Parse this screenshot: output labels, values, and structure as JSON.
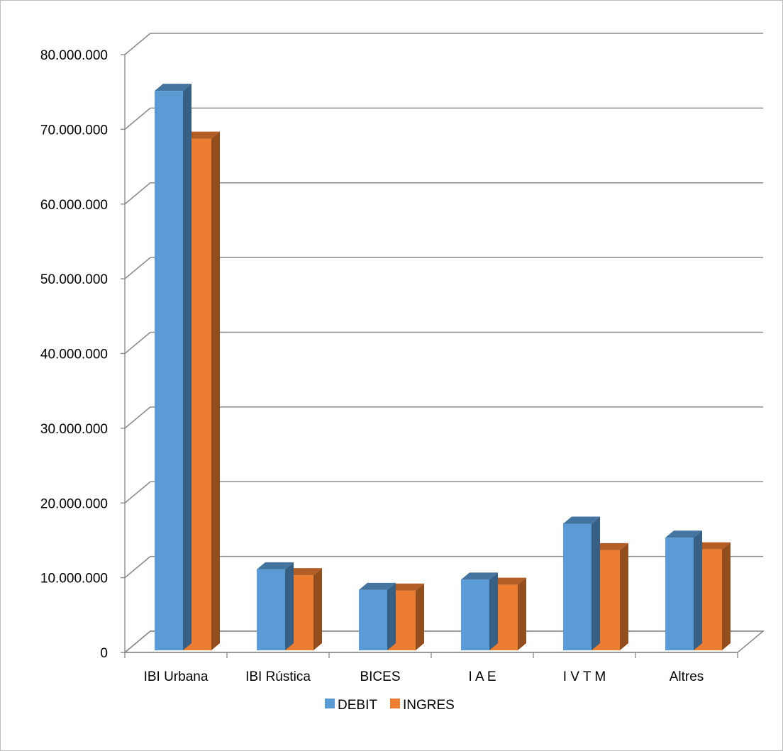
{
  "chart_data": {
    "type": "bar",
    "style": "3d-clustered-column",
    "title": "",
    "xlabel": "",
    "ylabel": "",
    "categories": [
      "IBI Urbana",
      "IBI Rústica",
      "BICES",
      "I A E",
      "I V T M",
      "Altres"
    ],
    "series": [
      {
        "name": "DEBIT",
        "color": "#5b9bd5",
        "values": [
          76000000,
          11000000,
          8200000,
          9600000,
          17200000,
          15300000
        ]
      },
      {
        "name": "INGRES",
        "color": "#ed7d31",
        "values": [
          69500000,
          10200000,
          8100000,
          8900000,
          13600000,
          13700000
        ]
      }
    ],
    "ylim": [
      0,
      80000000
    ],
    "y_ticks": [
      "0",
      "10.000.000",
      "20.000.000",
      "30.000.000",
      "40.000.000",
      "50.000.000",
      "60.000.000",
      "70.000.000",
      "80.000.000"
    ],
    "grid": true,
    "legend_position": "bottom"
  }
}
